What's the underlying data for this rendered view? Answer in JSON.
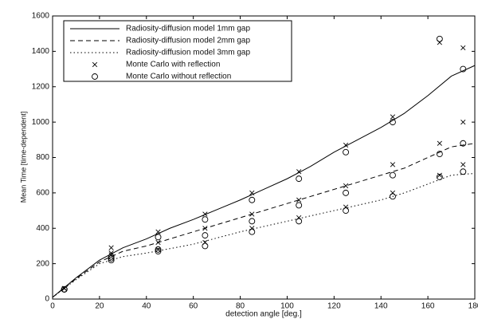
{
  "chart_data": {
    "type": "line",
    "xlabel": "detection angle [deg.]",
    "ylabel": "Mean Time [time-dependent]",
    "xlim": [
      0,
      180
    ],
    "xticks": [
      0,
      20,
      40,
      60,
      80,
      100,
      120,
      140,
      160,
      180
    ],
    "ylim": [
      0,
      1600
    ],
    "yticks": [
      0,
      200,
      400,
      600,
      800,
      1000,
      1200,
      1400,
      1600
    ],
    "legend": "upper-left",
    "series": [
      {
        "name": "Radiosity-diffusion model 1mm gap",
        "color": "#000000",
        "style": "solid",
        "x": [
          0,
          10,
          20,
          30,
          40,
          50,
          60,
          70,
          80,
          90,
          100,
          110,
          120,
          130,
          140,
          150,
          160,
          170,
          180
        ],
        "values": [
          10,
          120,
          220,
          290,
          340,
          400,
          450,
          505,
          560,
          620,
          680,
          750,
          830,
          900,
          970,
          1050,
          1150,
          1260,
          1320
        ]
      },
      {
        "name": "Radiosity-diffusion model 2mm gap",
        "color": "#000000",
        "style": "dashed",
        "x": [
          0,
          10,
          20,
          30,
          40,
          50,
          60,
          70,
          80,
          90,
          100,
          110,
          120,
          130,
          140,
          150,
          160,
          170,
          180
        ],
        "values": [
          10,
          115,
          210,
          270,
          300,
          340,
          380,
          420,
          460,
          500,
          540,
          580,
          620,
          660,
          700,
          740,
          800,
          860,
          880
        ]
      },
      {
        "name": "Radiosity-diffusion model 3mm gap",
        "color": "#000000",
        "style": "dotted",
        "x": [
          0,
          10,
          20,
          30,
          40,
          50,
          60,
          70,
          80,
          90,
          100,
          110,
          120,
          130,
          140,
          150,
          160,
          170,
          180
        ],
        "values": [
          10,
          110,
          200,
          240,
          260,
          285,
          310,
          345,
          380,
          410,
          440,
          470,
          500,
          530,
          560,
          600,
          650,
          700,
          710
        ]
      },
      {
        "name": "Monte Carlo with reflection",
        "color": "#000000",
        "style": "x",
        "x": [
          5,
          25,
          45,
          65,
          85,
          105,
          125,
          145,
          165,
          175,
          5,
          25,
          45,
          65,
          85,
          105,
          125,
          145,
          165,
          175,
          5,
          25,
          45,
          65,
          85,
          105,
          125,
          145,
          165,
          175
        ],
        "values": [
          60,
          290,
          380,
          480,
          600,
          720,
          870,
          1030,
          1450,
          1420,
          60,
          260,
          320,
          400,
          480,
          560,
          640,
          760,
          880,
          1000,
          60,
          250,
          280,
          320,
          400,
          460,
          520,
          600,
          700,
          760
        ]
      },
      {
        "name": "Monte Carlo without reflection",
        "color": "#000000",
        "style": "o",
        "x": [
          5,
          25,
          45,
          65,
          85,
          105,
          125,
          145,
          165,
          175,
          5,
          25,
          45,
          65,
          85,
          105,
          125,
          145,
          165,
          175,
          5,
          25,
          45,
          65,
          85,
          105,
          125,
          145,
          165,
          175
        ],
        "values": [
          55,
          240,
          350,
          450,
          560,
          680,
          830,
          1000,
          1470,
          1300,
          55,
          230,
          280,
          360,
          440,
          530,
          600,
          700,
          820,
          880,
          55,
          220,
          270,
          300,
          380,
          440,
          500,
          580,
          690,
          720
        ]
      }
    ]
  }
}
